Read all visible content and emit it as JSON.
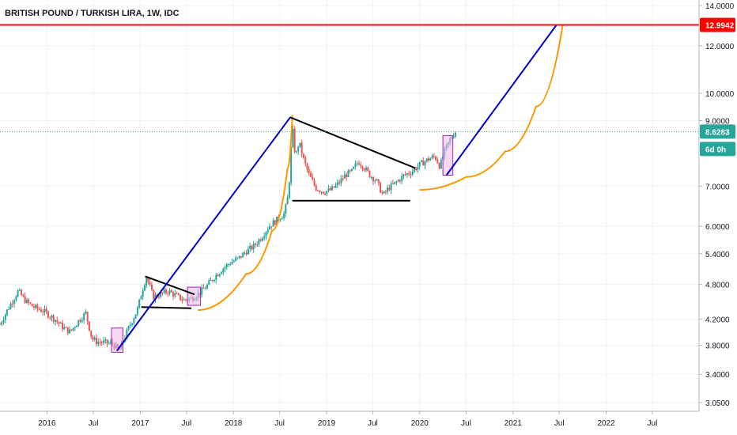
{
  "chart_data": {
    "type": "candlestick",
    "title": "BRITISH POUND / TURKISH LIRA, 1W, IDC",
    "y_scale": "log",
    "ylim": [
      2.95,
      14.3
    ],
    "y_ticks": [
      {
        "value": 14.0,
        "label": "14.0000"
      },
      {
        "value": 12.0,
        "label": "12.0000"
      },
      {
        "value": 10.0,
        "label": "10.0000"
      },
      {
        "value": 9.0,
        "label": "9.0000"
      },
      {
        "value": 7.0,
        "label": "7.0000"
      },
      {
        "value": 6.0,
        "label": "6.0000"
      },
      {
        "value": 5.4,
        "label": "5.4000"
      },
      {
        "value": 4.8,
        "label": "4.8000"
      },
      {
        "value": 4.2,
        "label": "4.2000"
      },
      {
        "value": 3.8,
        "label": "3.8000"
      },
      {
        "value": 3.4,
        "label": "3.4000"
      },
      {
        "value": 3.05,
        "label": "3.0500"
      }
    ],
    "xlim": [
      "2015-07-01",
      "2022-12-31"
    ],
    "x_ticks": [
      {
        "date": "2016-01-01",
        "label": "2016"
      },
      {
        "date": "2016-07-01",
        "label": "Jul"
      },
      {
        "date": "2017-01-01",
        "label": "2017"
      },
      {
        "date": "2017-07-01",
        "label": "Jul"
      },
      {
        "date": "2018-01-01",
        "label": "2018"
      },
      {
        "date": "2018-07-01",
        "label": "Jul"
      },
      {
        "date": "2019-01-01",
        "label": "2019"
      },
      {
        "date": "2019-07-01",
        "label": "Jul"
      },
      {
        "date": "2020-01-01",
        "label": "2020"
      },
      {
        "date": "2020-07-01",
        "label": "Jul"
      },
      {
        "date": "2021-01-01",
        "label": "2021"
      },
      {
        "date": "2021-07-01",
        "label": "Jul"
      },
      {
        "date": "2022-01-01",
        "label": "2022"
      },
      {
        "date": "2022-07-01",
        "label": "Jul"
      }
    ],
    "price_path": [
      [
        "2015-07-01",
        4.12
      ],
      [
        "2015-08-05",
        4.4
      ],
      [
        "2015-09-10",
        4.68
      ],
      [
        "2015-10-10",
        4.5
      ],
      [
        "2015-11-10",
        4.4
      ],
      [
        "2015-12-20",
        4.33
      ],
      [
        "2016-02-01",
        4.2
      ],
      [
        "2016-03-01",
        4.08
      ],
      [
        "2016-04-01",
        4.0
      ],
      [
        "2016-05-01",
        4.16
      ],
      [
        "2016-06-01",
        4.3
      ],
      [
        "2016-06-25",
        3.9
      ],
      [
        "2016-07-15",
        3.85
      ],
      [
        "2016-08-15",
        3.84
      ],
      [
        "2016-09-15",
        3.82
      ],
      [
        "2016-10-10",
        3.72
      ],
      [
        "2016-11-15",
        4.05
      ],
      [
        "2016-12-20",
        4.35
      ],
      [
        "2017-01-10",
        4.72
      ],
      [
        "2017-01-25",
        4.95
      ],
      [
        "2017-02-20",
        4.58
      ],
      [
        "2017-03-20",
        4.62
      ],
      [
        "2017-04-20",
        4.68
      ],
      [
        "2017-05-20",
        4.6
      ],
      [
        "2017-06-20",
        4.52
      ],
      [
        "2017-07-20",
        4.55
      ],
      [
        "2017-08-20",
        4.64
      ],
      [
        "2017-09-20",
        4.78
      ],
      [
        "2017-10-20",
        4.95
      ],
      [
        "2017-11-20",
        5.1
      ],
      [
        "2017-12-20",
        5.22
      ],
      [
        "2018-01-20",
        5.3
      ],
      [
        "2018-02-20",
        5.45
      ],
      [
        "2018-03-20",
        5.55
      ],
      [
        "2018-04-20",
        5.75
      ],
      [
        "2018-05-20",
        6.0
      ],
      [
        "2018-06-20",
        6.15
      ],
      [
        "2018-07-20",
        6.3
      ],
      [
        "2018-08-05",
        6.8
      ],
      [
        "2018-08-20",
        8.8
      ],
      [
        "2018-09-01",
        7.8
      ],
      [
        "2018-09-15",
        8.3
      ],
      [
        "2018-10-05",
        7.7
      ],
      [
        "2018-10-25",
        7.3
      ],
      [
        "2018-11-20",
        6.95
      ],
      [
        "2018-12-20",
        6.85
      ],
      [
        "2019-01-20",
        6.9
      ],
      [
        "2019-02-20",
        7.1
      ],
      [
        "2019-03-15",
        7.3
      ],
      [
        "2019-04-10",
        7.4
      ],
      [
        "2019-05-05",
        7.7
      ],
      [
        "2019-05-25",
        7.55
      ],
      [
        "2019-06-20",
        7.3
      ],
      [
        "2019-07-15",
        7.15
      ],
      [
        "2019-08-10",
        6.75
      ],
      [
        "2019-09-01",
        6.95
      ],
      [
        "2019-10-01",
        7.1
      ],
      [
        "2019-11-01",
        7.3
      ],
      [
        "2019-12-01",
        7.4
      ],
      [
        "2020-01-01",
        7.6
      ],
      [
        "2020-02-01",
        7.75
      ],
      [
        "2020-03-01",
        7.85
      ],
      [
        "2020-03-20",
        7.55
      ],
      [
        "2020-04-10",
        8.05
      ],
      [
        "2020-05-01",
        8.4
      ],
      [
        "2020-05-20",
        8.63
      ]
    ],
    "annotations": {
      "resistance_line": {
        "value": 12.9942,
        "label": "12.9942",
        "color": "#ff0000"
      },
      "last_price": {
        "value": 8.6283,
        "label": "8.6283",
        "color": "#26a69a",
        "dotted_guide": true
      },
      "countdown": {
        "label": "6d 0h",
        "color": "#26a69a"
      },
      "trend_lines": [
        {
          "color": "#0000cc",
          "from": [
            "2016-10-01",
            3.72
          ],
          "to": [
            "2018-08-12",
            9.12
          ]
        },
        {
          "color": "#0000cc",
          "from": [
            "2020-04-15",
            7.3
          ],
          "to": [
            "2021-06-20",
            12.99
          ]
        }
      ],
      "pattern_lines": [
        {
          "color": "#000000",
          "from": [
            "2017-01-20",
            4.95
          ],
          "to": [
            "2017-08-01",
            4.62
          ]
        },
        {
          "color": "#000000",
          "from": [
            "2017-01-05",
            4.4
          ],
          "to": [
            "2017-07-20",
            4.38
          ]
        },
        {
          "color": "#000000",
          "from": [
            "2018-08-10",
            9.12
          ],
          "to": [
            "2019-12-15",
            7.5
          ]
        },
        {
          "color": "#000000",
          "from": [
            "2018-08-20",
            6.62
          ],
          "to": [
            "2019-11-25",
            6.62
          ]
        }
      ],
      "curves": [
        {
          "color": "#ff9800",
          "points": [
            [
              "2017-08-15",
              4.35
            ],
            [
              "2018-02-20",
              5.0
            ],
            [
              "2018-06-01",
              5.9
            ],
            [
              "2018-08-01",
              7.5
            ],
            [
              "2018-08-20",
              9.2
            ]
          ]
        },
        {
          "color": "#ff9800",
          "points": [
            [
              "2020-01-01",
              6.9
            ],
            [
              "2020-07-01",
              7.25
            ],
            [
              "2020-12-01",
              8.0
            ],
            [
              "2021-04-01",
              9.5
            ],
            [
              "2021-07-15",
              13.0
            ]
          ]
        }
      ],
      "highlight_boxes": [
        {
          "from": [
            "2016-09-10",
            3.7
          ],
          "to": [
            "2016-10-25",
            4.06
          ]
        },
        {
          "from": [
            "2017-07-05",
            4.43
          ],
          "to": [
            "2017-08-25",
            4.75
          ]
        },
        {
          "from": [
            "2020-04-01",
            7.3
          ],
          "to": [
            "2020-05-10",
            8.5
          ]
        }
      ]
    },
    "colors": {
      "up": "#26a69a",
      "down": "#ef5350",
      "grid": "#f0f3fa",
      "axis": "#b2b5be",
      "box_fill": "#f3b6ea",
      "box_stroke": "#9c27b0"
    }
  }
}
